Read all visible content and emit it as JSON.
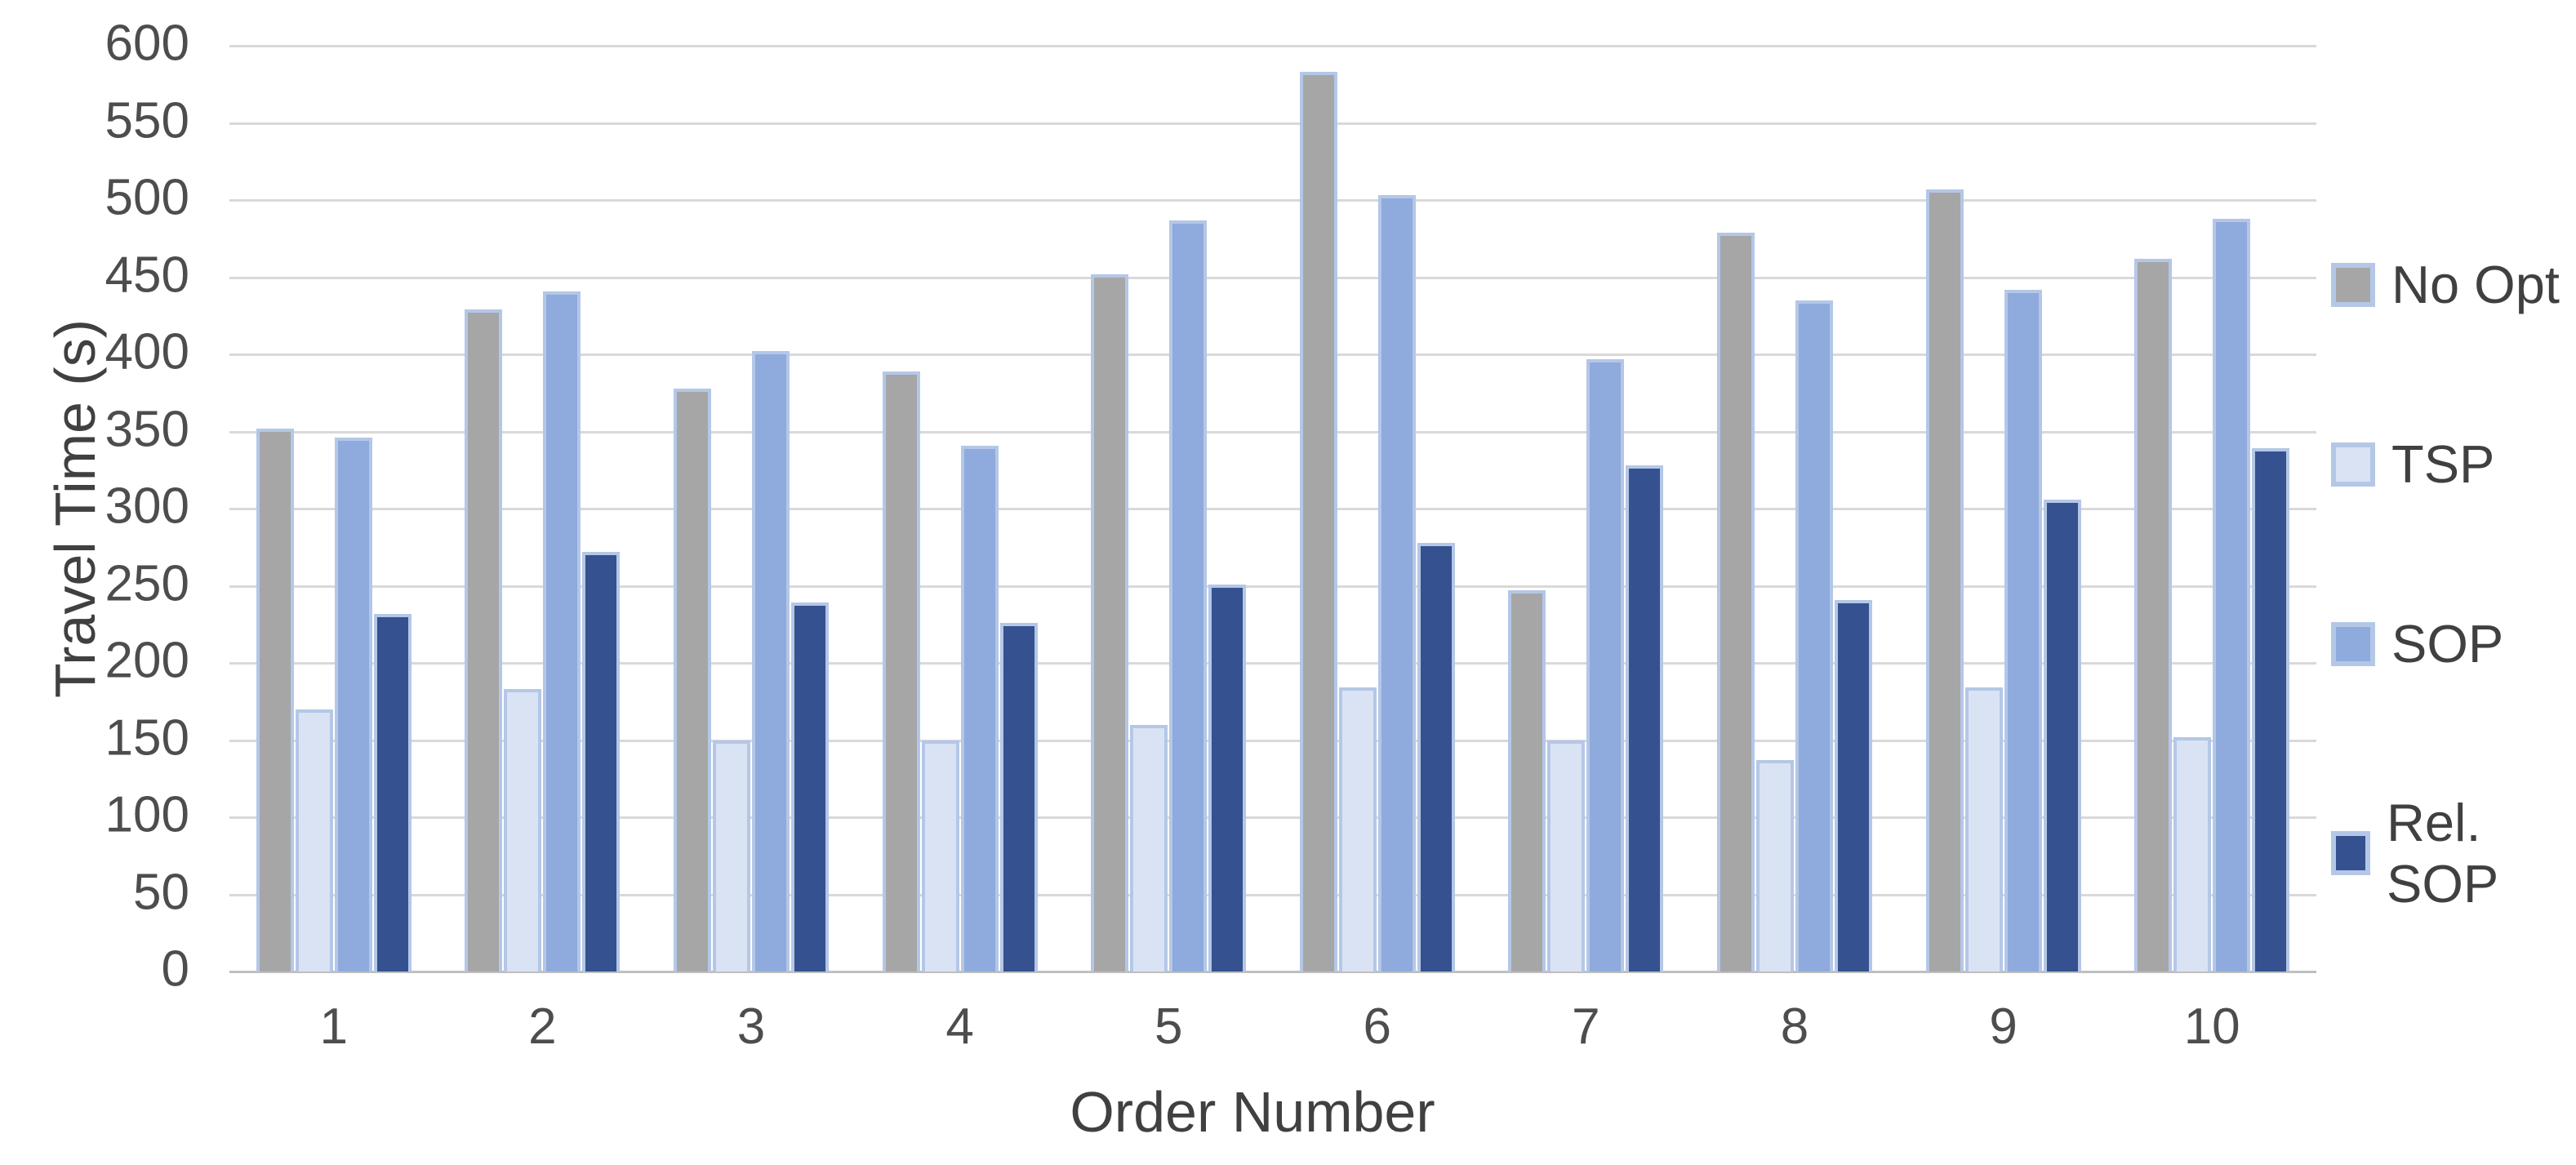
{
  "chart_data": {
    "type": "bar",
    "title": "",
    "xlabel": "Order Number",
    "ylabel": "Travel Time (s)",
    "categories": [
      "1",
      "2",
      "3",
      "4",
      "5",
      "6",
      "7",
      "8",
      "9",
      "10"
    ],
    "series": [
      {
        "name": "No Opt",
        "color": "#a6a6a6",
        "values": [
          352,
          429,
          378,
          389,
          452,
          583,
          247,
          479,
          507,
          462
        ]
      },
      {
        "name": "TSP",
        "color": "#dae3f3",
        "values": [
          170,
          183,
          150,
          150,
          160,
          184,
          150,
          137,
          184,
          152
        ]
      },
      {
        "name": "SOP",
        "color": "#8faadc",
        "values": [
          346,
          441,
          402,
          341,
          487,
          503,
          397,
          435,
          442,
          488
        ]
      },
      {
        "name": "Rel. SOP",
        "color": "#35518f",
        "values": [
          232,
          272,
          239,
          226,
          251,
          278,
          328,
          241,
          306,
          339
        ]
      }
    ],
    "ylim": [
      0,
      600
    ],
    "y_ticks": [
      0,
      50,
      100,
      150,
      200,
      250,
      300,
      350,
      400,
      450,
      500,
      550,
      600
    ],
    "grid": true,
    "legend_position": "right",
    "colors": {
      "bar_border": "#b4c7e7",
      "gridline": "#d9d9d9",
      "axis_line": "#bfbfbf",
      "tick_text": "#4d4d4d",
      "title_text": "#404040"
    }
  }
}
